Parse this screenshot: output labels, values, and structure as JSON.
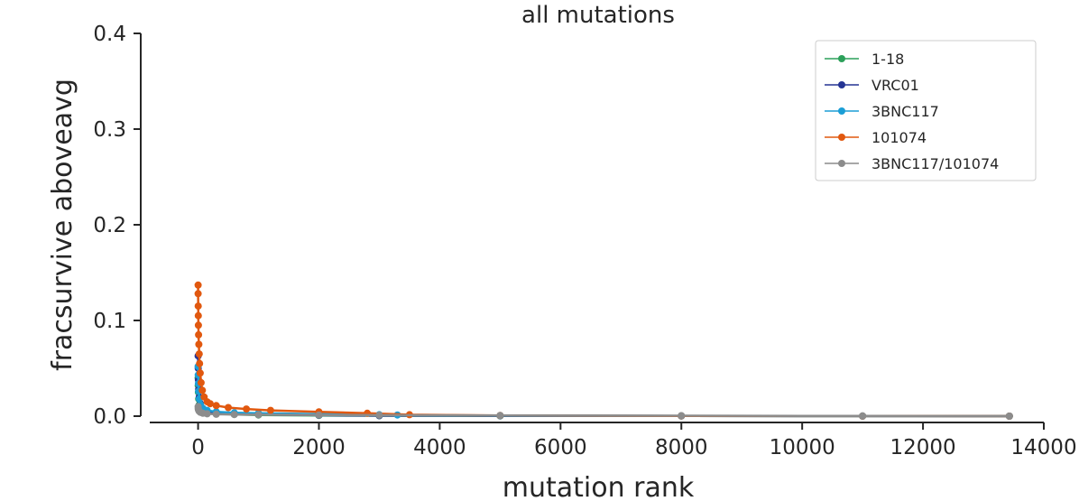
{
  "chart_data": {
    "type": "line",
    "title": "all mutations",
    "xlabel": "mutation rank",
    "ylabel": "fracsurvive aboveavg",
    "xlim": [
      -800,
      14000
    ],
    "ylim": [
      0,
      0.4
    ],
    "xticks": [
      0,
      2000,
      4000,
      6000,
      8000,
      10000,
      12000,
      14000
    ],
    "yticks": [
      0.0,
      0.1,
      0.2,
      0.3,
      0.4
    ],
    "xtick_labels": [
      "0",
      "2000",
      "4000",
      "6000",
      "8000",
      "10000",
      "12000",
      "14000"
    ],
    "ytick_labels": [
      "0.0",
      "0.1",
      "0.2",
      "0.3",
      "0.4"
    ],
    "grid": false,
    "legend_position": "top-right",
    "series": [
      {
        "name": "1-18",
        "color": "#2ca05a",
        "x": [
          0,
          2,
          5,
          10,
          20,
          40,
          80,
          150,
          300,
          600,
          1000,
          2000,
          3000,
          5000,
          8000,
          11000,
          13430
        ],
        "y": [
          0.04,
          0.032,
          0.025,
          0.018,
          0.012,
          0.008,
          0.005,
          0.0035,
          0.0025,
          0.0018,
          0.0012,
          0.0008,
          0.0005,
          0.0003,
          0.0002,
          0.0001,
          0.0
        ]
      },
      {
        "name": "VRC01",
        "color": "#253494",
        "x": [
          0,
          2,
          5,
          10,
          20,
          40,
          80,
          150,
          300,
          600,
          1000,
          2000,
          3000,
          5000,
          8000,
          11000,
          13430
        ],
        "y": [
          0.063,
          0.05,
          0.038,
          0.028,
          0.02,
          0.013,
          0.008,
          0.005,
          0.0035,
          0.0025,
          0.0018,
          0.001,
          0.0006,
          0.0004,
          0.0002,
          0.0001,
          0.0
        ]
      },
      {
        "name": "3BNC117",
        "color": "#1b9ed6",
        "x": [
          0,
          2,
          5,
          10,
          20,
          40,
          80,
          150,
          300,
          600,
          1000,
          2000,
          3000,
          3300,
          5000,
          8000,
          11000,
          13430
        ],
        "y": [
          0.052,
          0.043,
          0.034,
          0.026,
          0.018,
          0.012,
          0.008,
          0.006,
          0.0045,
          0.0035,
          0.003,
          0.0022,
          0.0015,
          0.0012,
          0.0006,
          0.0003,
          0.0001,
          0.0
        ]
      },
      {
        "name": "101074",
        "color": "#e1580f",
        "x": [
          0,
          1,
          2,
          3,
          5,
          8,
          12,
          18,
          25,
          35,
          50,
          70,
          100,
          150,
          200,
          300,
          500,
          800,
          1200,
          2000,
          2800,
          3500,
          5000,
          8000,
          11000,
          13430
        ],
        "y": [
          0.137,
          0.128,
          0.115,
          0.105,
          0.095,
          0.085,
          0.075,
          0.065,
          0.055,
          0.045,
          0.035,
          0.027,
          0.02,
          0.015,
          0.013,
          0.011,
          0.009,
          0.0075,
          0.006,
          0.0045,
          0.003,
          0.0015,
          0.0007,
          0.0003,
          0.0001,
          0.0
        ]
      },
      {
        "name": "3BNC117/101074",
        "color": "#8c8c8c",
        "x": [
          0,
          2,
          5,
          10,
          20,
          40,
          80,
          150,
          300,
          600,
          1000,
          2000,
          3000,
          5000,
          8000,
          11000,
          13430
        ],
        "y": [
          0.01,
          0.008,
          0.007,
          0.006,
          0.005,
          0.004,
          0.003,
          0.0025,
          0.002,
          0.0017,
          0.0015,
          0.0012,
          0.001,
          0.0008,
          0.0005,
          0.0002,
          0.0
        ]
      }
    ]
  }
}
